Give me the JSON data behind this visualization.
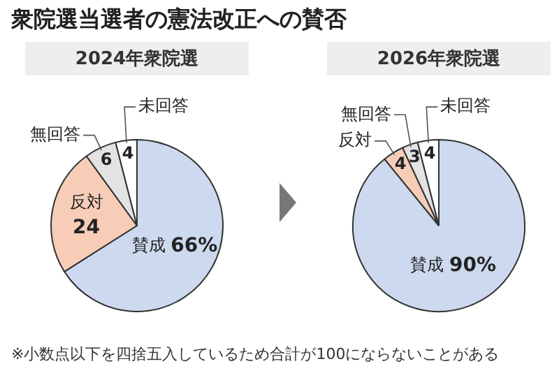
{
  "chart_data": [
    {
      "type": "pie",
      "title": "衆院選当選者の憲法改正への賛否",
      "subtitle": "2024年衆院選",
      "categories": [
        "賛成",
        "反対",
        "無回答",
        "未回答"
      ],
      "values": [
        66,
        24,
        6,
        4
      ],
      "value_labels": [
        "66%",
        "24",
        "6",
        "4"
      ],
      "colors": [
        "#cdd9ee",
        "#f7cdb8",
        "#e3e3e3",
        "#ffffff"
      ],
      "legend": false,
      "annotations": [
        "※小数点以下を四捨五入しているため合計が100にならないことがある"
      ]
    },
    {
      "type": "pie",
      "subtitle": "2026年衆院選",
      "categories": [
        "賛成",
        "反対",
        "無回答",
        "未回答"
      ],
      "values": [
        90,
        4,
        3,
        4
      ],
      "value_labels": [
        "90%",
        "4",
        "3",
        "4"
      ],
      "colors": [
        "#cdd9ee",
        "#f7cdb8",
        "#e3e3e3",
        "#ffffff"
      ],
      "legend": false
    }
  ]
}
